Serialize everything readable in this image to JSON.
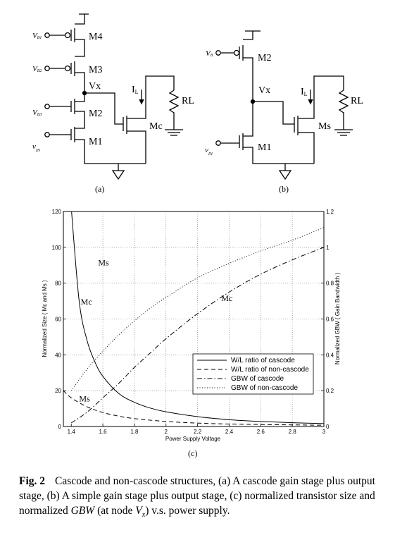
{
  "circuit_a": {
    "labels": {
      "m4": "M4",
      "m3": "M3",
      "m2": "M2",
      "m1": "M1",
      "mc": "Mc",
      "vx": "Vx",
      "il": "I",
      "il_sub": "L",
      "rl": "RL"
    },
    "inputs": [
      {
        "main": "V",
        "sub": "B1"
      },
      {
        "main": "V",
        "sub": "B2"
      },
      {
        "main": "V",
        "sub": "B3"
      },
      {
        "main": "v",
        "sub": "IN"
      }
    ],
    "tag": "(a)"
  },
  "circuit_b": {
    "labels": {
      "m2": "M2",
      "m1": "M1",
      "ms": "Ms",
      "vx": "Vx",
      "il": "I",
      "il_sub": "L",
      "rl": "RL"
    },
    "inputs": [
      {
        "main": "V",
        "sub": "B"
      },
      {
        "main": "v",
        "sub": "IN"
      }
    ],
    "tag": "(b)"
  },
  "chart_tag": "(c)",
  "chart_data": {
    "type": "line",
    "xlabel": "Power Supply Voltage",
    "ylabel": "Normalized Size ( Mc and Ms )",
    "y2label": "Normalized GBW ( Gain Bandwidth )",
    "xlim": [
      1.35,
      3.0
    ],
    "ylim": [
      0,
      120
    ],
    "y2lim": [
      0,
      1.2
    ],
    "xticks": [
      "1.4",
      "1.6",
      "1.8",
      "2",
      "2.2",
      "2.4",
      "2.6",
      "2.8",
      "3"
    ],
    "yticks": [
      "0",
      "20",
      "40",
      "60",
      "80",
      "100",
      "120"
    ],
    "y2ticks": [
      "0",
      "0.2",
      "0.4",
      "0.6",
      "0.8",
      "1",
      "1.2"
    ],
    "grid": true,
    "legend_position": "lower-right",
    "annotations": [
      {
        "text": "Ms",
        "x": 1.57,
        "y": 90
      },
      {
        "text": "Mc",
        "x": 1.46,
        "y": 68
      },
      {
        "text": "Mc",
        "x": 2.35,
        "y": 70
      },
      {
        "text": "Ms",
        "x": 1.45,
        "y": 14
      }
    ],
    "series": [
      {
        "name": "W/L ratio of cascode",
        "style": "solid",
        "axis": "left",
        "x": [
          1.4,
          1.45,
          1.5,
          1.55,
          1.6,
          1.7,
          1.8,
          1.9,
          2.0,
          2.2,
          2.4,
          2.6,
          2.8,
          3.0
        ],
        "y": [
          122,
          70,
          48,
          36,
          28,
          18.5,
          13.5,
          10.3,
          8.2,
          5.5,
          3.8,
          2.8,
          2.1,
          1.6
        ]
      },
      {
        "name": "W/L ratio of non-cascode",
        "style": "dashed",
        "axis": "left",
        "x": [
          1.35,
          1.4,
          1.5,
          1.6,
          1.7,
          1.8,
          2.0,
          2.2,
          2.4,
          2.6,
          2.8,
          3.0
        ],
        "y": [
          20,
          16,
          11,
          7.8,
          5.8,
          4.4,
          2.8,
          1.9,
          1.4,
          1.1,
          0.9,
          0.7
        ]
      },
      {
        "name": "GBW of cascode",
        "style": "dashdot",
        "axis": "right",
        "x": [
          1.4,
          1.5,
          1.6,
          1.7,
          1.8,
          1.9,
          2.0,
          2.2,
          2.4,
          2.6,
          2.8,
          3.0
        ],
        "y": [
          0.02,
          0.08,
          0.16,
          0.24,
          0.33,
          0.41,
          0.49,
          0.63,
          0.75,
          0.85,
          0.93,
          1.0
        ]
      },
      {
        "name": "GBW of non-cascode",
        "style": "dotted",
        "axis": "right",
        "x": [
          1.4,
          1.5,
          1.6,
          1.7,
          1.8,
          1.9,
          2.0,
          2.2,
          2.4,
          2.6,
          2.8,
          3.0
        ],
        "y": [
          0.2,
          0.32,
          0.42,
          0.51,
          0.59,
          0.66,
          0.72,
          0.83,
          0.91,
          0.98,
          1.04,
          1.11
        ]
      }
    ]
  },
  "caption": {
    "label": "Fig. 2",
    "t1": "Cascode and non-cascode structures, (a) A cascode gain stage plus output stage, (b) A simple gain stage plus output stage, (c) normalized transistor size and normalized ",
    "t2": "GBW",
    "t3": " (at node ",
    "t4": "V",
    "t5": "x",
    "t6": ") v.s. power supply."
  }
}
